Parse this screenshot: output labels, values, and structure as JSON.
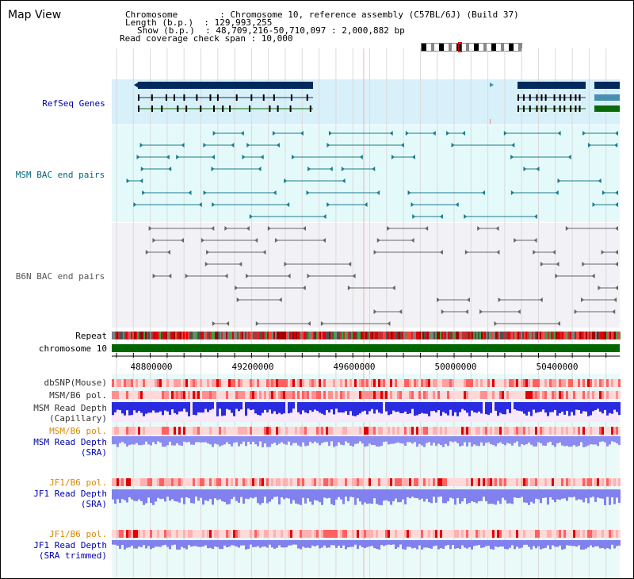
{
  "window": {
    "title": "Map View"
  },
  "info": {
    "chromosome": "Chromosome        : Chromosome 10, reference assembly (C57BL/6J) (Build 37)",
    "length": "Length (b.p.)  : 129,993,255",
    "show": "Show (b.p.)  : 48,709,216-50,710,097 : 2,000,882 bp",
    "coverage": "Read coverage check span : 10,000"
  },
  "tracks": {
    "refseq": "RefSeq Genes",
    "msm_bac": "MSM BAC end pairs",
    "b6n_bac": "B6N BAC end pairs",
    "repeat": "Repeat",
    "chromosome": "chromosome 10",
    "dbsnp": "dbSNP(Mouse)",
    "msm_b6_pol": "MSM/B6 pol.",
    "msm_read_depth_cap": "MSM Read Depth\n(Capillary)",
    "msm_b6_pol_2": "MSM/B6 pol.",
    "msm_read_depth_sra": "MSM Read Depth\n(SRA)",
    "jf1_b6_pol": "JF1/B6 pol.",
    "jf1_read_depth_sra": "JF1 Read Depth\n(SRA)",
    "jf1_b6_pol_2": "JF1/B6 pol.",
    "jf1_read_depth_trim": "JF1 Read Depth\n(SRA trimmed)"
  },
  "axis": {
    "ticks": [
      "48800000",
      "49200000",
      "49600000",
      "50000000",
      "50400000"
    ]
  },
  "colors": {
    "refseq_bg": "#d8f0fa",
    "msm_bg": "#e4fafa",
    "b6n_bg": "#f2f2f6",
    "bottom_bg": "#eafaf8",
    "gene_dark": "#002a5c",
    "gene_teal": "#4a8fb0",
    "gene_green": "#0a6a0a",
    "msm_line": "#1a7b8c",
    "b6n_line": "#666666",
    "chrom_green": "#006600",
    "label_blue": "#0000aa",
    "label_teal": "#006677",
    "label_orange": "#dd8800"
  }
}
